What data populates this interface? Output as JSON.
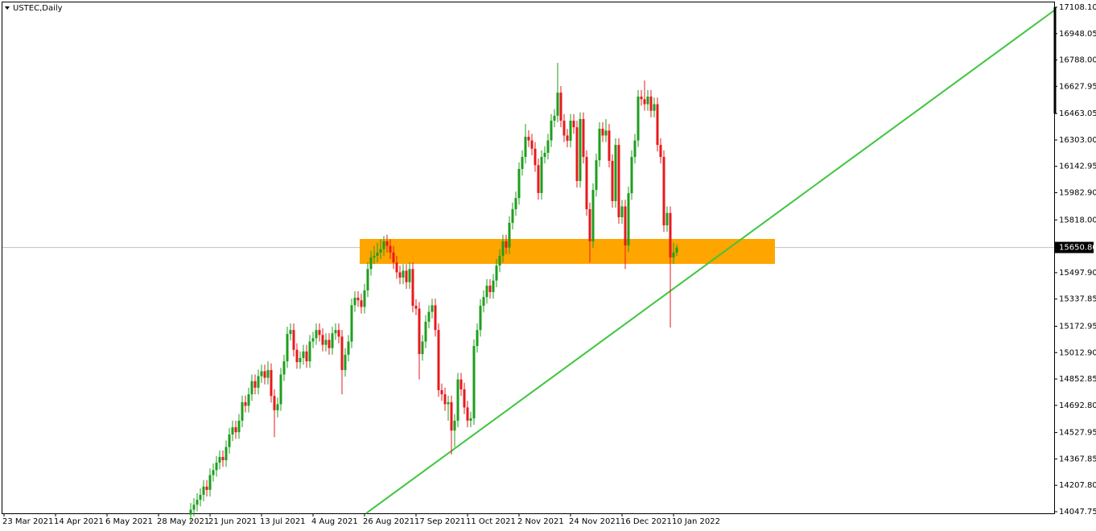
{
  "chart_data": {
    "type": "candlestick",
    "title": "USTEC,Daily",
    "up_color": "#1e9e1e",
    "down_color": "#e8191c",
    "current_price": {
      "value": 15650.8,
      "label": "15650.80"
    },
    "ylim": [
      14047.75,
      17108.1
    ],
    "yticks": [
      {
        "value": 17108.1,
        "label": "17108.10"
      },
      16948.05,
      {
        "value": 16788,
        "label": "16788.00"
      },
      16627.95,
      16463.05,
      {
        "value": 16303,
        "label": "16303.00"
      },
      16142.95,
      {
        "value": 15982.9,
        "label": "15982.90"
      },
      {
        "value": 15818,
        "label": "15818.00"
      },
      {
        "value": 15497.9,
        "label": "15497.90"
      },
      15337.85,
      15172.95,
      {
        "value": 15012.9,
        "label": "15012.90"
      },
      14852.85,
      {
        "value": 14692.8,
        "label": "14692.80"
      },
      14527.95,
      14367.85,
      {
        "value": 14207.8,
        "label": "14207.80"
      },
      14047.75
    ],
    "categories": [
      "23 Mar 2021",
      null,
      null,
      null,
      null,
      null,
      null,
      null,
      null,
      null,
      null,
      null,
      null,
      null,
      null,
      null,
      "14 Apr 2021",
      null,
      null,
      null,
      null,
      null,
      null,
      null,
      null,
      null,
      null,
      null,
      null,
      null,
      null,
      null,
      "6 May 2021",
      null,
      null,
      null,
      null,
      null,
      null,
      null,
      null,
      null,
      null,
      null,
      null,
      null,
      null,
      null,
      "28 May 2021",
      null,
      null,
      null,
      null,
      null,
      null,
      null,
      null,
      null,
      null,
      null,
      null,
      null,
      null,
      null,
      "21 Jun 2021",
      null,
      null,
      null,
      null,
      null,
      null,
      null,
      null,
      null,
      null,
      null,
      null,
      null,
      null,
      null,
      "13 Jul 2021",
      null,
      null,
      null,
      null,
      null,
      null,
      null,
      null,
      null,
      null,
      null,
      null,
      null,
      null,
      null,
      "4 Aug 2021",
      null,
      null,
      null,
      null,
      null,
      null,
      null,
      null,
      null,
      null,
      null,
      null,
      null,
      null,
      null,
      "26 Aug 2021",
      null,
      null,
      null,
      null,
      null,
      null,
      null,
      null,
      null,
      null,
      null,
      null,
      null,
      null,
      null,
      "17 Sep 2021",
      null,
      null,
      null,
      null,
      null,
      null,
      null,
      null,
      null,
      null,
      null,
      null,
      null,
      null,
      null,
      "11 Oct 2021",
      null,
      null,
      null,
      null,
      null,
      null,
      null,
      null,
      null,
      null,
      null,
      null,
      null,
      null,
      null,
      "2 Nov 2021",
      null,
      null,
      null,
      null,
      null,
      null,
      null,
      null,
      null,
      null,
      null,
      null,
      null,
      null,
      null,
      "24 Nov 2021",
      null,
      null,
      null,
      null,
      null,
      null,
      null,
      null,
      null,
      null,
      null,
      null,
      null,
      null,
      null,
      "16 Dec 2021",
      null,
      null,
      null,
      null,
      null,
      null,
      null,
      null,
      null,
      null,
      null,
      null,
      null,
      null,
      null,
      "10 Jan 2022",
      null
    ],
    "open": [
      null,
      null,
      null,
      null,
      null,
      null,
      null,
      null,
      null,
      null,
      null,
      null,
      null,
      null,
      null,
      null,
      null,
      null,
      null,
      null,
      null,
      null,
      null,
      null,
      null,
      null,
      null,
      null,
      null,
      null,
      null,
      null,
      null,
      null,
      null,
      null,
      null,
      null,
      null,
      null,
      null,
      null,
      null,
      null,
      null,
      null,
      null,
      null,
      null,
      null,
      null,
      null,
      null,
      null,
      null,
      null,
      null,
      null,
      14030,
      14060,
      14090,
      14120,
      14150,
      14200,
      14180,
      14270,
      14300,
      14345,
      14380,
      14360,
      14440,
      14516,
      14560,
      14530,
      14600,
      14712,
      14690,
      14760,
      14840,
      14800,
      14870,
      14900,
      14860,
      14907,
      14750,
      14663,
      14700,
      14880,
      14960,
      15126,
      15150,
      15030,
      14955,
      14980,
      15020,
      14960,
      15080,
      15100,
      15150,
      15120,
      15060,
      15090,
      15040,
      15130,
      15150,
      15110,
      14907,
      15000,
      15080,
      15300,
      15346,
      15330,
      15290,
      15390,
      15520,
      15590,
      15600,
      15620,
      15640,
      15688,
      15660,
      15620,
      15560,
      15500,
      15468,
      15510,
      15440,
      15520,
      15297,
      15280,
      15004,
      15080,
      15200,
      15260,
      15300,
      15150,
      14785,
      14760,
      14700,
      14712,
      14540,
      14600,
      14850,
      14790,
      14680,
      14600,
      14614,
      15053,
      15150,
      15297,
      15350,
      15419,
      15380,
      15450,
      15541,
      15600,
      15688,
      15650,
      15800,
      15883,
      15950,
      16127,
      16200,
      16322,
      16300,
      16250,
      16150,
      15981,
      16200,
      16225,
      16300,
      16420,
      16450,
      16590,
      16420,
      16330,
      16298,
      16420,
      16380,
      16054,
      16430,
      16200,
      15883,
      15688,
      16000,
      16180,
      16371,
      16330,
      16360,
      16176,
      15932,
      16273,
      15834,
      15900,
      15663,
      15980,
      16200,
      16300,
      16566,
      16550,
      16520,
      16566,
      16480,
      16520,
      16273,
      16200,
      15785,
      15860,
      15590,
      15620
    ],
    "high": [
      null,
      null,
      null,
      null,
      null,
      null,
      null,
      null,
      null,
      null,
      null,
      null,
      null,
      null,
      null,
      null,
      null,
      null,
      null,
      null,
      null,
      null,
      null,
      null,
      null,
      null,
      null,
      null,
      null,
      null,
      null,
      null,
      null,
      null,
      null,
      null,
      null,
      null,
      null,
      null,
      null,
      null,
      null,
      null,
      null,
      null,
      null,
      null,
      null,
      null,
      null,
      null,
      null,
      null,
      null,
      null,
      null,
      null,
      14100,
      14130,
      14160,
      14190,
      14240,
      14240,
      14310,
      14340,
      14385,
      14420,
      14420,
      14480,
      14556,
      14600,
      14600,
      14640,
      14752,
      14752,
      14800,
      14880,
      14880,
      14910,
      14940,
      14940,
      14960,
      14947,
      14790,
      14740,
      14920,
      15000,
      15170,
      15190,
      15190,
      15070,
      15020,
      15060,
      15060,
      15120,
      15140,
      15190,
      15190,
      15160,
      15130,
      15130,
      15170,
      15190,
      15190,
      15150,
      15040,
      15120,
      15340,
      15386,
      15386,
      15370,
      15430,
      15560,
      15630,
      15660,
      15680,
      15700,
      15720,
      15728,
      15700,
      15660,
      15600,
      15540,
      15550,
      15550,
      15560,
      15560,
      15337,
      15320,
      15120,
      15240,
      15300,
      15340,
      15340,
      15190,
      14825,
      14800,
      14752,
      14752,
      14640,
      14890,
      14890,
      14830,
      14720,
      14654,
      15093,
      15190,
      15337,
      15390,
      15459,
      15459,
      15490,
      15581,
      15640,
      15728,
      15728,
      15840,
      15923,
      15990,
      16167,
      16240,
      16400,
      16362,
      16340,
      16290,
      16190,
      16240,
      16265,
      16340,
      16460,
      16490,
      16771,
      16630,
      16460,
      16370,
      16460,
      16460,
      16420,
      16470,
      16470,
      16240,
      15923,
      16040,
      16220,
      16411,
      16411,
      16430,
      16400,
      16216,
      16313,
      16313,
      15940,
      15940,
      16020,
      16240,
      16340,
      16606,
      16606,
      16664,
      16606,
      16606,
      16560,
      16560,
      16313,
      16240,
      15900,
      15900,
      15680,
      15670
    ],
    "low": [
      null,
      null,
      null,
      null,
      null,
      null,
      null,
      null,
      null,
      null,
      null,
      null,
      null,
      null,
      null,
      null,
      null,
      null,
      null,
      null,
      null,
      null,
      null,
      null,
      null,
      null,
      null,
      null,
      null,
      null,
      null,
      null,
      null,
      null,
      null,
      null,
      null,
      null,
      null,
      null,
      null,
      null,
      null,
      null,
      null,
      null,
      null,
      null,
      null,
      null,
      null,
      null,
      null,
      null,
      null,
      null,
      null,
      null,
      13990,
      14020,
      14050,
      14080,
      14110,
      14140,
      14140,
      14230,
      14260,
      14305,
      14320,
      14320,
      14400,
      14476,
      14490,
      14490,
      14560,
      14650,
      14650,
      14720,
      14760,
      14760,
      14830,
      14820,
      14820,
      14710,
      14500,
      14620,
      14660,
      14840,
      14920,
      15086,
      14990,
      14915,
      14915,
      14940,
      14920,
      14920,
      15040,
      15060,
      15080,
      15020,
      15020,
      15000,
      15000,
      15090,
      15070,
      14760,
      14867,
      14960,
      15040,
      15260,
      15290,
      15250,
      15250,
      15350,
      15480,
      15550,
      15560,
      15580,
      15600,
      15620,
      15580,
      15520,
      15460,
      15428,
      15428,
      15400,
      15400,
      15257,
      15240,
      14850,
      14964,
      15040,
      15160,
      15220,
      15110,
      14745,
      14720,
      14660,
      14600,
      14394,
      14440,
      14560,
      14750,
      14640,
      14560,
      14560,
      14574,
      15013,
      15110,
      15257,
      15310,
      15340,
      15340,
      15410,
      15501,
      15560,
      15610,
      15610,
      15760,
      15843,
      15910,
      16087,
      16160,
      16260,
      16210,
      16110,
      15941,
      15941,
      16160,
      16185,
      16260,
      16380,
      16410,
      16380,
      16290,
      16258,
      16258,
      16340,
      16014,
      16014,
      16160,
      15843,
      15560,
      15648,
      15960,
      16140,
      16290,
      16290,
      16136,
      15892,
      15892,
      15794,
      15794,
      15520,
      15623,
      15940,
      16160,
      16260,
      16510,
      16480,
      16480,
      16440,
      16440,
      16233,
      16160,
      15745,
      15745,
      15165,
      15550,
      15600
    ],
    "close": [
      null,
      null,
      null,
      null,
      null,
      null,
      null,
      null,
      null,
      null,
      null,
      null,
      null,
      null,
      null,
      null,
      null,
      null,
      null,
      null,
      null,
      null,
      null,
      null,
      null,
      null,
      null,
      null,
      null,
      null,
      null,
      null,
      null,
      null,
      null,
      null,
      null,
      null,
      null,
      null,
      null,
      null,
      null,
      null,
      null,
      null,
      null,
      null,
      null,
      null,
      null,
      null,
      null,
      null,
      null,
      null,
      null,
      null,
      14060,
      14090,
      14120,
      14150,
      14200,
      14180,
      14270,
      14300,
      14345,
      14380,
      14360,
      14440,
      14516,
      14560,
      14530,
      14600,
      14712,
      14690,
      14760,
      14840,
      14800,
      14870,
      14900,
      14860,
      14907,
      14750,
      14663,
      14700,
      14880,
      14960,
      15126,
      15150,
      15030,
      14955,
      14980,
      15020,
      14960,
      15080,
      15100,
      15150,
      15120,
      15060,
      15090,
      15040,
      15130,
      15150,
      15110,
      14907,
      15000,
      15080,
      15300,
      15346,
      15330,
      15290,
      15390,
      15520,
      15590,
      15600,
      15620,
      15640,
      15688,
      15660,
      15620,
      15560,
      15500,
      15468,
      15510,
      15440,
      15520,
      15297,
      15280,
      15004,
      15080,
      15200,
      15260,
      15300,
      15150,
      14785,
      14760,
      14700,
      14712,
      14540,
      14600,
      14850,
      14790,
      14680,
      14600,
      14614,
      15053,
      15150,
      15297,
      15350,
      15419,
      15380,
      15450,
      15541,
      15600,
      15688,
      15650,
      15800,
      15883,
      15950,
      16127,
      16200,
      16322,
      16300,
      16250,
      16150,
      15981,
      16200,
      16225,
      16300,
      16420,
      16450,
      16590,
      16420,
      16330,
      16298,
      16420,
      16380,
      16054,
      16430,
      16200,
      15883,
      15688,
      16000,
      16180,
      16371,
      16330,
      16360,
      16176,
      15932,
      16273,
      15834,
      15900,
      15663,
      15980,
      16200,
      16300,
      16566,
      16550,
      16520,
      16566,
      16480,
      16520,
      16273,
      16200,
      15785,
      15860,
      15590,
      15620,
      15650.8
    ]
  }
}
